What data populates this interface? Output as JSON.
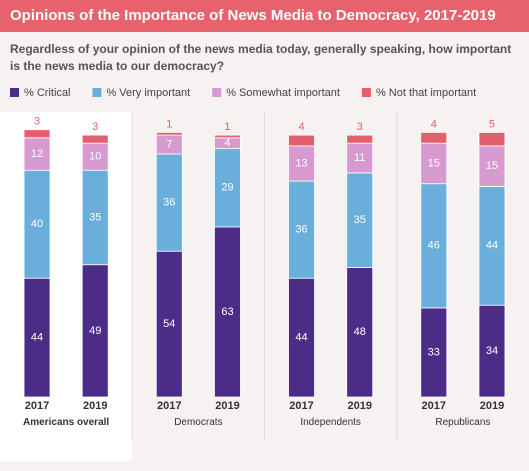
{
  "chart_data": {
    "type": "stacked-bar",
    "title": "Opinions of the Importance of News Media to Democracy, 2017-2019",
    "subtitle": "Regardless of your opinion of the news media today, generally speaking, how important is the news media to our democracy?",
    "categories": [
      "2017",
      "2019",
      "2017",
      "2019",
      "2017",
      "2019",
      "2017",
      "2019"
    ],
    "groups": [
      "Americans overall",
      "Democrats",
      "Independents",
      "Republicans"
    ],
    "series": [
      {
        "name": "% Critical",
        "color": "#4b2d88",
        "values": [
          44,
          49,
          54,
          63,
          44,
          48,
          33,
          34
        ]
      },
      {
        "name": "% Very important",
        "color": "#6aaedb",
        "values": [
          40,
          35,
          36,
          29,
          36,
          35,
          46,
          44
        ]
      },
      {
        "name": "% Somewhat important",
        "color": "#d79ad0",
        "values": [
          12,
          10,
          7,
          4,
          13,
          11,
          15,
          15
        ]
      },
      {
        "name": "% Not that important",
        "color": "#e2606d",
        "values": [
          3,
          3,
          1,
          1,
          4,
          3,
          4,
          5
        ]
      }
    ]
  }
}
